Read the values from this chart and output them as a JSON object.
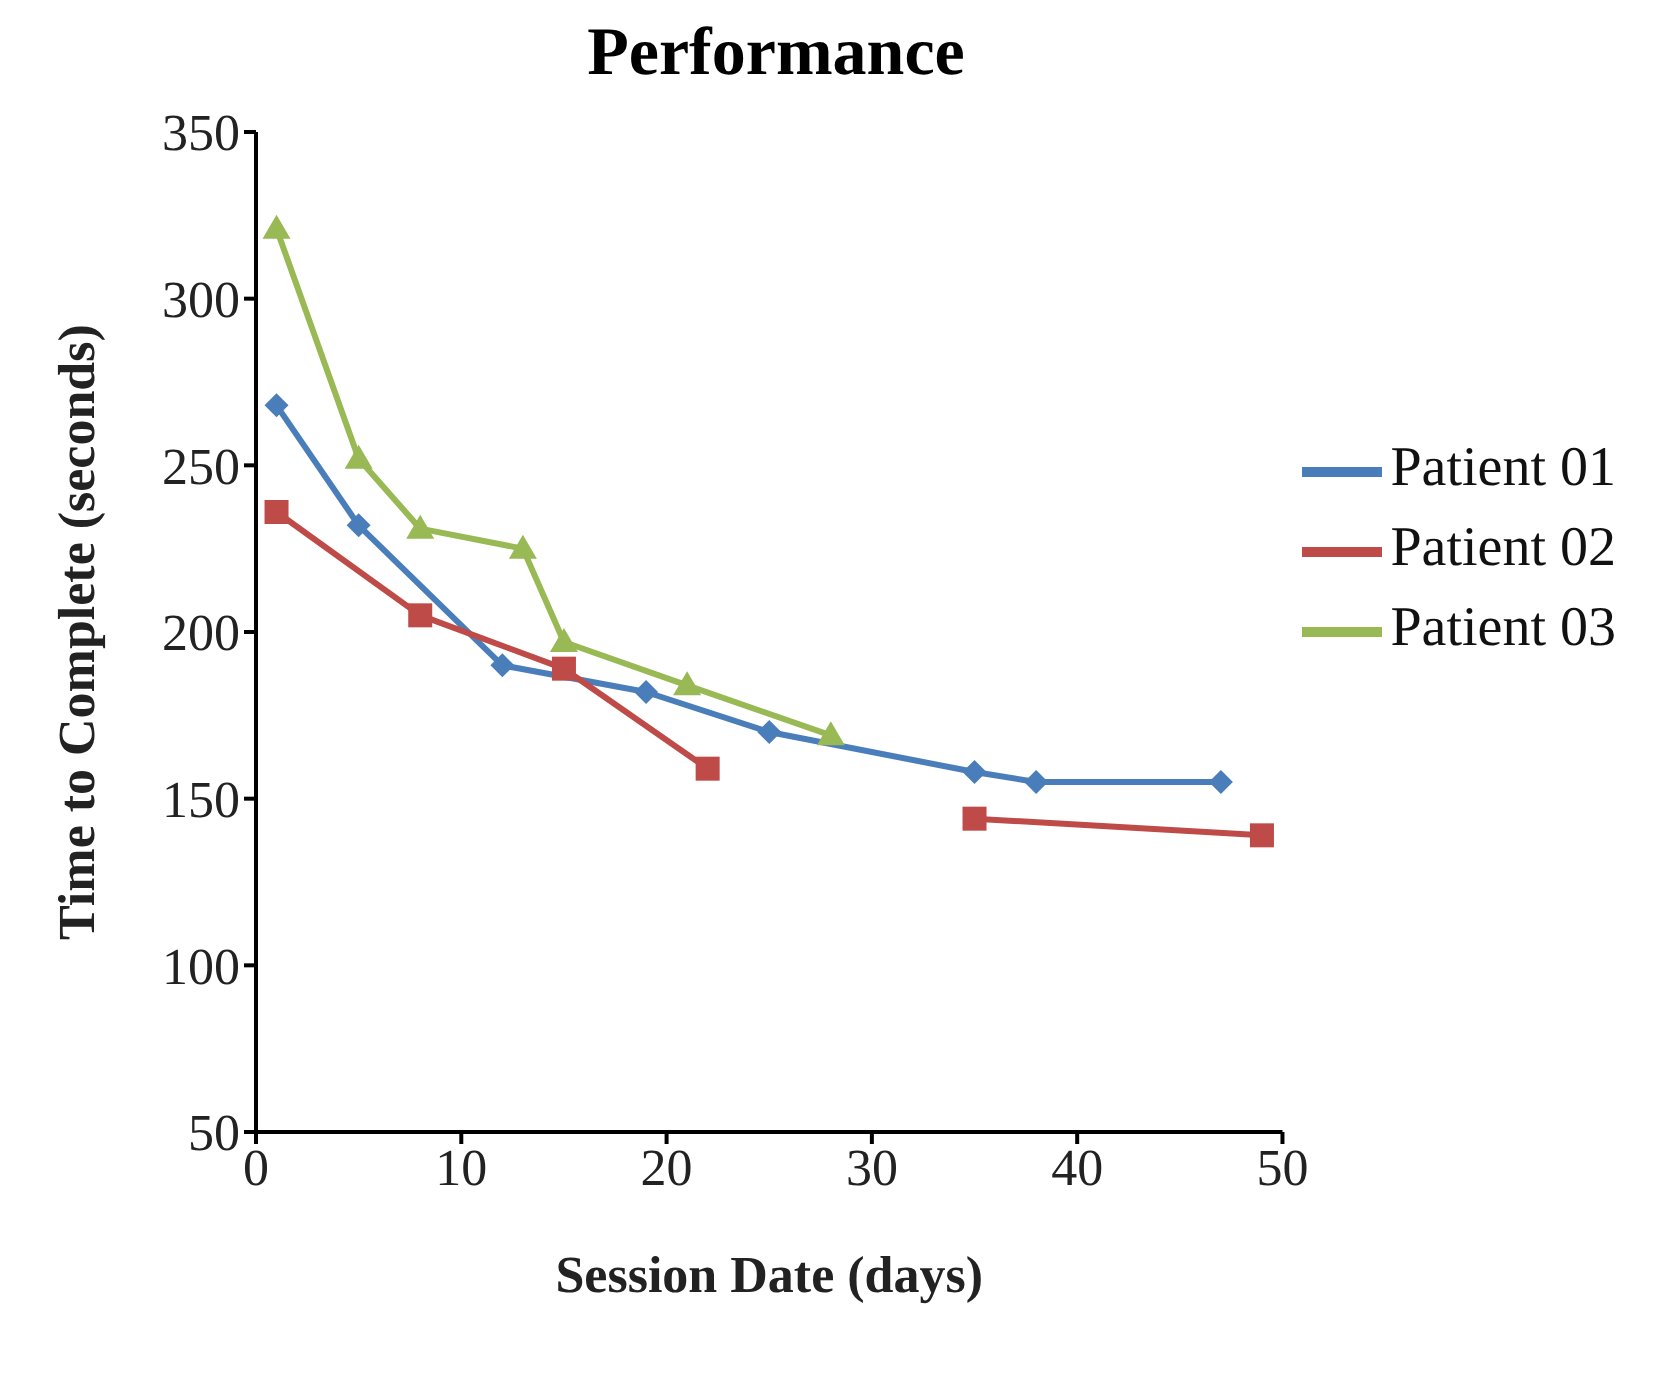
{
  "chart_data": {
    "type": "line",
    "title": "Performance",
    "xlabel": "Session Date (days)",
    "ylabel": "Time to Complete (seconds)",
    "xlim": [
      0,
      50
    ],
    "xticks": [
      0,
      10,
      20,
      30,
      40,
      50
    ],
    "ylim": [
      50,
      350
    ],
    "yticks": [
      50,
      100,
      150,
      200,
      250,
      300,
      350
    ],
    "grid": false,
    "legend": "right",
    "series": [
      {
        "name": "Patient 01",
        "color": "#4a7ebb",
        "marker": "diamond",
        "x": [
          1,
          5,
          12,
          19,
          25,
          35,
          38,
          47
        ],
        "values": [
          268,
          232,
          190,
          182,
          170,
          158,
          155,
          155
        ]
      },
      {
        "name": "Patient 02",
        "color": "#be4b48",
        "marker": "square",
        "x": [
          1,
          8,
          15,
          22,
          28,
          35,
          49
        ],
        "values": [
          236,
          205,
          189,
          159,
          null,
          144,
          139
        ]
      },
      {
        "name": "Patient 03",
        "color": "#98b954",
        "marker": "triangle",
        "x": [
          1,
          5,
          8,
          13,
          15,
          21,
          28
        ],
        "values": [
          321,
          252,
          231,
          225,
          197,
          184,
          169
        ]
      }
    ]
  }
}
